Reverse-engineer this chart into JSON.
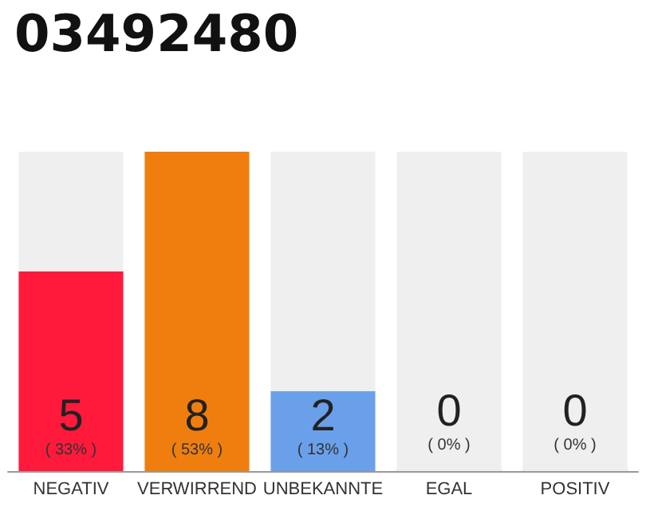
{
  "chart_data": {
    "type": "bar",
    "title": "03492480",
    "stacked": true,
    "categories": [
      "NEGATIV",
      "VERWIRREND",
      "UNBEKANNTE",
      "EGAL",
      "POSITIV"
    ],
    "series": [
      {
        "colors": [
          "#ff1a3c",
          "#f07e0e",
          "#6aa0ea",
          "#aaaaaa",
          "#aaaaaa"
        ],
        "values": [
          5,
          8,
          2,
          0,
          0
        ],
        "value_labels": [
          "5\n( 33% )",
          "8\n( 53% )",
          "2\n( 13% )",
          "0\n( 0% )",
          "0\n( 0% )"
        ]
      },
      {
        "color": "#efefef",
        "values": [
          3,
          0,
          6,
          8,
          8
        ]
      }
    ]
  }
}
